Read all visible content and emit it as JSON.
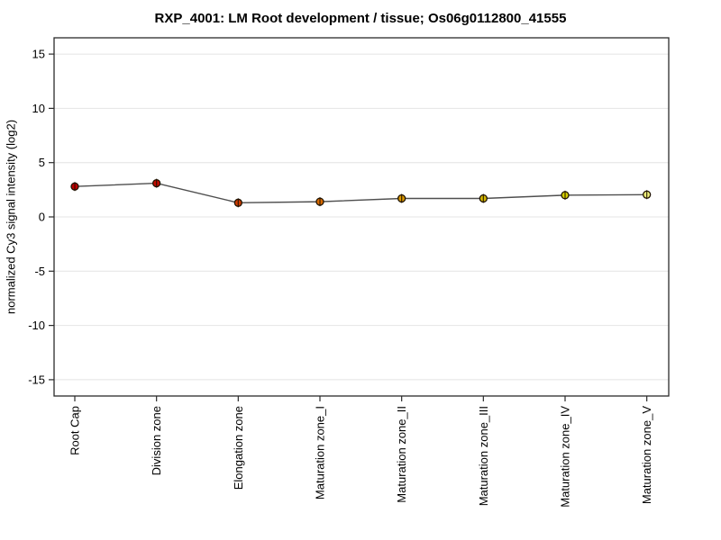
{
  "chart_data": {
    "type": "line",
    "title": "RXP_4001: LM Root development / tissue; Os06g0112800_41555",
    "ylabel": "normalized Cy3 signal intensity (log2)",
    "xlabel": "",
    "categories": [
      "Root Cap",
      "Division zone",
      "Elongation zone",
      "Maturation zone_I",
      "Maturation zone_II",
      "Maturation zone_III",
      "Maturation zone_IV",
      "Maturation zone_V"
    ],
    "series": [
      {
        "name": "Os06g0112800_41555",
        "values": [
          2.8,
          3.1,
          1.3,
          1.4,
          1.7,
          1.7,
          2.0,
          2.05
        ]
      }
    ],
    "yticks": [
      15,
      10,
      5,
      0,
      -5,
      -10,
      -15
    ],
    "ylim": [
      -16.5,
      16.5
    ],
    "grid": true,
    "legend_position": "none",
    "error_bars": true,
    "point_colors": [
      "#bf0000",
      "#c20b00",
      "#cc3b00",
      "#d86a00",
      "#d99800",
      "#d4b800",
      "#d6d000",
      "#edef7a"
    ],
    "point_outline_color": "#201400",
    "line_color": "#4f4f4f",
    "grid_color": "#e4e4e4",
    "axis_color": "#2b2b2b",
    "background_color": "#ffffff"
  }
}
